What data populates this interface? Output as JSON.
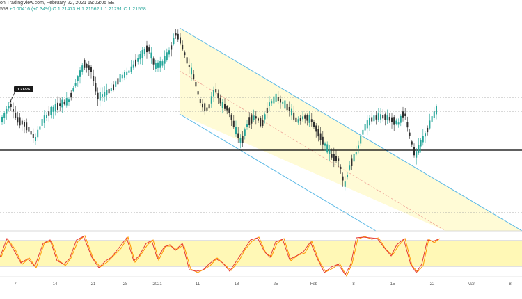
{
  "header": {
    "line1": "on TradingView.com, February 22, 2021 19:03:05 EET",
    "line2_prefix": "558",
    "change": "+0.00416 (+0.34%)",
    "ohlc": "O:1.21473 H:1.21562 L:1.21291 C:1.21558"
  },
  "price_label": "1.21776",
  "chart_data": {
    "type": "candlestick",
    "instrument_note": "EUR/USD-like daily candles; values estimated visually",
    "x_ticks": [
      "7",
      "14",
      "21",
      "28",
      "2021",
      "11",
      "18",
      "25",
      "Feb",
      "8",
      "15",
      "22",
      "Mar",
      "8"
    ],
    "close_last": 1.21558,
    "annotated_level": 1.21776,
    "horizontal_levels": [
      "dashed",
      "dashed",
      "solid-black",
      "dashed"
    ],
    "channel": "descending parallel channel (light blue borders, yellow fill) with red dashed midline",
    "oscillator": {
      "name": "stochastic",
      "band": "yellow overbought/oversold band",
      "lines": [
        "red %K",
        "orange %D"
      ]
    }
  },
  "colors": {
    "up": "#26a69a",
    "down": "#2e2e2e",
    "channel_border": "#5ab9e6",
    "channel_fill": "#fffbd6",
    "midline": "#e57373",
    "osc_band": "#fff59d",
    "osc_k": "#e53935",
    "osc_d": "#ff9800",
    "support": "#000000"
  }
}
